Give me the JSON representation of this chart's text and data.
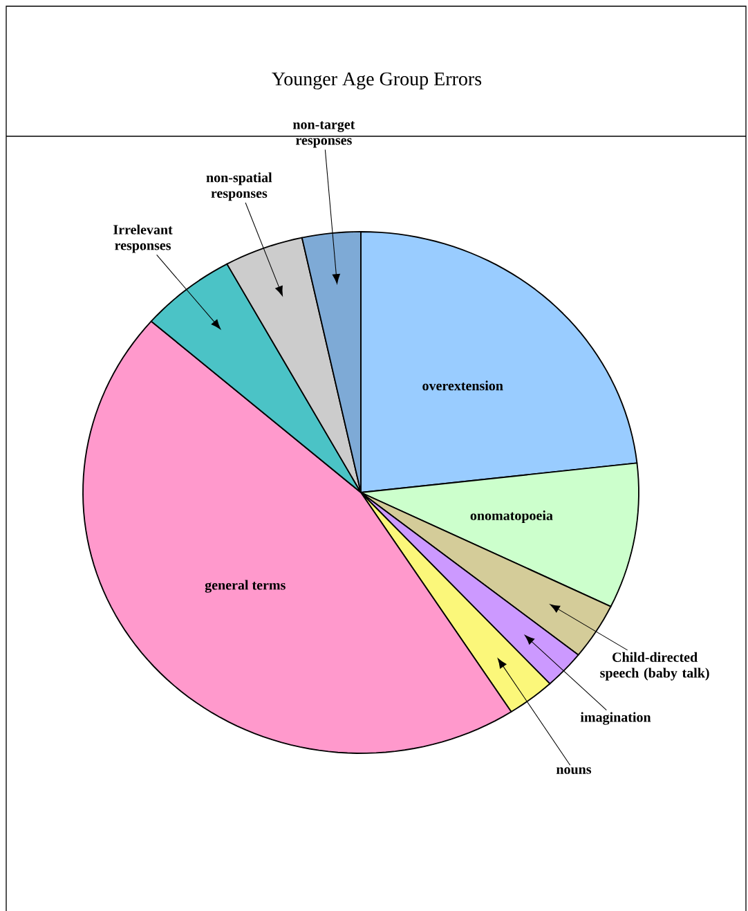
{
  "chart_data": {
    "type": "pie",
    "title": "Younger Age Group Errors",
    "categories": [
      "overextension",
      "onomatopoeia",
      "Child-directed speech (baby talk)",
      "imagination",
      "nouns",
      "general terms",
      "Irrelevant responses",
      "non-spatial responses",
      "non-target responses"
    ],
    "values": [
      23.2,
      9.0,
      3.5,
      2.4,
      2.8,
      45.5,
      5.6,
      4.6,
      3.4
    ],
    "colors": [
      "#99ccff",
      "#ccffcc",
      "#d4cc99",
      "#cc99ff",
      "#fbf77a",
      "#ff99cc",
      "#4bc3c6",
      "#cccccc",
      "#7eaad6"
    ]
  }
}
